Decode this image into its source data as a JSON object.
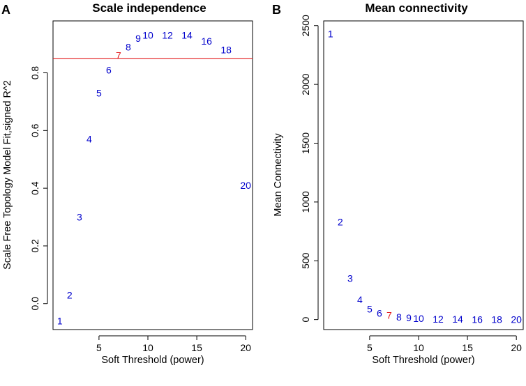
{
  "chart_data": [
    {
      "type": "scatter",
      "panel_letter": "A",
      "title": "Scale independence",
      "xlabel": "Soft Threshold (power)",
      "ylabel": "Scale Free Topology Model Fit,signed R^2",
      "xlim": [
        0.3,
        20.7
      ],
      "ylim": [
        -0.09,
        0.98
      ],
      "xticks": [
        5,
        10,
        15,
        20
      ],
      "yticks": [
        0.0,
        0.2,
        0.4,
        0.6,
        0.8
      ],
      "ytick_labels": [
        "0.0",
        "0.2",
        "0.4",
        "0.6",
        "0.8"
      ],
      "reference_line": 0.85,
      "reference_color": "#e31a1c",
      "point_color": "#0000cc",
      "highlight_color": "#e31a1c",
      "highlight_power": 7,
      "points": [
        {
          "x": 1,
          "y": -0.06,
          "label": "1"
        },
        {
          "x": 2,
          "y": 0.03,
          "label": "2"
        },
        {
          "x": 3,
          "y": 0.3,
          "label": "3"
        },
        {
          "x": 4,
          "y": 0.57,
          "label": "4"
        },
        {
          "x": 5,
          "y": 0.73,
          "label": "5"
        },
        {
          "x": 6,
          "y": 0.81,
          "label": "6"
        },
        {
          "x": 7,
          "y": 0.86,
          "label": "7"
        },
        {
          "x": 8,
          "y": 0.89,
          "label": "8"
        },
        {
          "x": 9,
          "y": 0.92,
          "label": "9"
        },
        {
          "x": 10,
          "y": 0.93,
          "label": "10"
        },
        {
          "x": 12,
          "y": 0.93,
          "label": "12"
        },
        {
          "x": 14,
          "y": 0.93,
          "label": "14"
        },
        {
          "x": 16,
          "y": 0.91,
          "label": "16"
        },
        {
          "x": 18,
          "y": 0.88,
          "label": "18"
        },
        {
          "x": 20,
          "y": 0.41,
          "label": "20"
        }
      ]
    },
    {
      "type": "scatter",
      "panel_letter": "B",
      "title": "Mean connectivity",
      "xlabel": "Soft Threshold (power)",
      "ylabel": "Mean Connectivity",
      "xlim": [
        0.3,
        20.7
      ],
      "ylim": [
        -85,
        2540
      ],
      "xticks": [
        5,
        10,
        15,
        20
      ],
      "yticks": [
        0,
        500,
        1000,
        1500,
        2000,
        2500
      ],
      "ytick_labels": [
        "0",
        "500",
        "1000",
        "1500",
        "2000",
        "2500"
      ],
      "point_color": "#0000cc",
      "highlight_color": "#e31a1c",
      "highlight_power": 7,
      "points": [
        {
          "x": 1,
          "y": 2430,
          "label": "1"
        },
        {
          "x": 2,
          "y": 830,
          "label": "2"
        },
        {
          "x": 3,
          "y": 350,
          "label": "3"
        },
        {
          "x": 4,
          "y": 170,
          "label": "4"
        },
        {
          "x": 5,
          "y": 90,
          "label": "5"
        },
        {
          "x": 6,
          "y": 55,
          "label": "6"
        },
        {
          "x": 7,
          "y": 35,
          "label": "7"
        },
        {
          "x": 8,
          "y": 22,
          "label": "8"
        },
        {
          "x": 9,
          "y": 15,
          "label": "9"
        },
        {
          "x": 10,
          "y": 10,
          "label": "10"
        },
        {
          "x": 12,
          "y": 5,
          "label": "12"
        },
        {
          "x": 14,
          "y": 3,
          "label": "14"
        },
        {
          "x": 16,
          "y": 2,
          "label": "16"
        },
        {
          "x": 18,
          "y": 1,
          "label": "18"
        },
        {
          "x": 20,
          "y": 0,
          "label": "20"
        }
      ]
    }
  ]
}
